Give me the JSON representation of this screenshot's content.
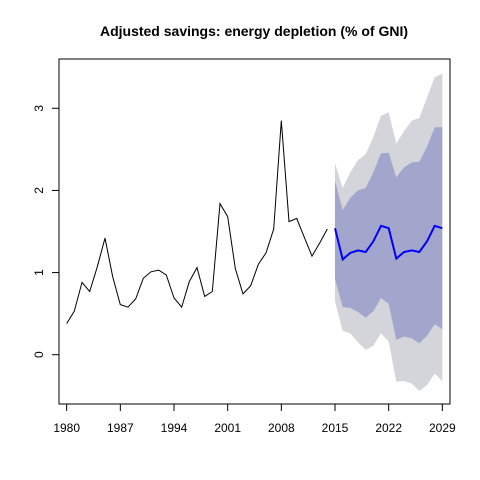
{
  "chart_data": {
    "type": "line",
    "title": "Adjusted savings: energy depletion (% of GNI)",
    "xlabel": "",
    "ylabel": "",
    "xlim": [
      1979,
      2030
    ],
    "ylim": [
      -0.6,
      3.6
    ],
    "x_ticks": [
      1980,
      1987,
      1994,
      2001,
      2008,
      2015,
      2022,
      2029
    ],
    "x_tick_labels": [
      "1980",
      "1987",
      "1994",
      "2001",
      "2008",
      "2015",
      "2022",
      "2029"
    ],
    "y_ticks": [
      0,
      1,
      2,
      3
    ],
    "y_tick_labels": [
      "0",
      "1",
      "2",
      "3"
    ],
    "grid": false,
    "legend": "none",
    "colors": {
      "history": "#000000",
      "forecast": "#0000ff",
      "band80": "#a3a6cc",
      "band95": "#d4d4db"
    },
    "series": [
      {
        "role": "history",
        "x": [
          1980,
          1981,
          1982,
          1983,
          1984,
          1985,
          1986,
          1987,
          1988,
          1989,
          1990,
          1991,
          1992,
          1993,
          1994,
          1995,
          1996,
          1997,
          1998,
          1999,
          2000,
          2001,
          2002,
          2003,
          2004,
          2005,
          2006,
          2007,
          2008,
          2009,
          2010,
          2011,
          2012,
          2013,
          2014
        ],
        "y": [
          0.38,
          0.53,
          0.88,
          0.77,
          1.07,
          1.42,
          0.95,
          0.61,
          0.58,
          0.68,
          0.93,
          1.01,
          1.03,
          0.97,
          0.69,
          0.58,
          0.89,
          1.06,
          0.71,
          0.77,
          1.84,
          1.68,
          1.05,
          0.74,
          0.84,
          1.1,
          1.24,
          1.53,
          2.85,
          1.62,
          1.66,
          1.43,
          1.2,
          1.36,
          1.53
        ]
      },
      {
        "role": "forecast",
        "x": [
          2015,
          2016,
          2017,
          2018,
          2019,
          2020,
          2021,
          2022,
          2023,
          2024,
          2025,
          2026,
          2027,
          2028,
          2029
        ],
        "y": [
          1.54,
          1.16,
          1.24,
          1.27,
          1.25,
          1.38,
          1.57,
          1.54,
          1.17,
          1.25,
          1.27,
          1.25,
          1.38,
          1.57,
          1.54
        ],
        "lo80": [
          0.92,
          0.58,
          0.57,
          0.52,
          0.45,
          0.53,
          0.69,
          0.62,
          0.18,
          0.22,
          0.2,
          0.14,
          0.23,
          0.37,
          0.31
        ],
        "hi80": [
          2.12,
          1.76,
          1.91,
          2.0,
          2.03,
          2.22,
          2.45,
          2.46,
          2.16,
          2.28,
          2.34,
          2.35,
          2.53,
          2.77,
          2.77
        ],
        "lo95": [
          0.65,
          0.29,
          0.26,
          0.15,
          0.06,
          0.11,
          0.26,
          0.16,
          -0.33,
          -0.32,
          -0.35,
          -0.44,
          -0.37,
          -0.23,
          -0.32
        ],
        "hi95": [
          2.33,
          2.03,
          2.22,
          2.37,
          2.44,
          2.65,
          2.91,
          2.95,
          2.57,
          2.72,
          2.85,
          2.88,
          3.13,
          3.38,
          3.42
        ]
      }
    ]
  }
}
